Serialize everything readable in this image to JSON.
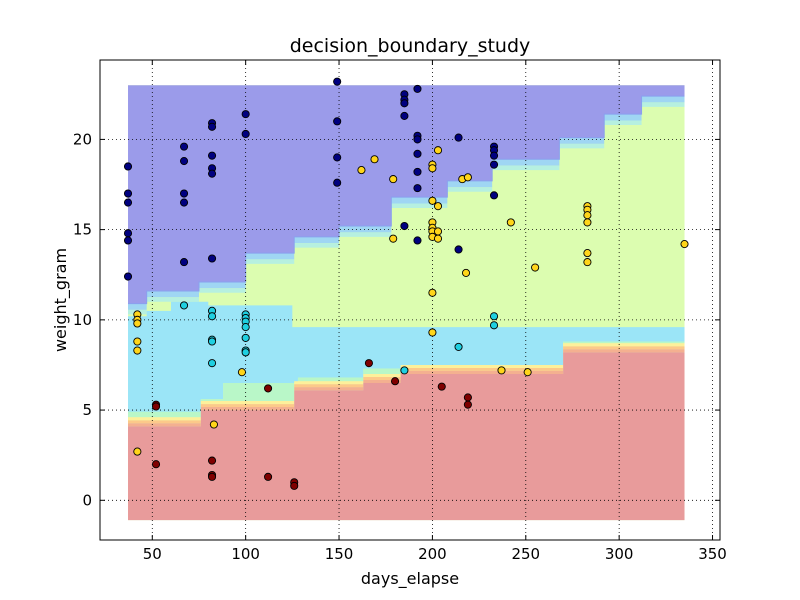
{
  "chart_data": {
    "type": "scatter",
    "title": "decision_boundary_study",
    "xlabel": "days_elapse",
    "ylabel": "weight_gram",
    "xlim": [
      22,
      354
    ],
    "ylim": [
      -2.2,
      24.4
    ],
    "xticks": [
      50,
      100,
      150,
      200,
      250,
      300,
      350
    ],
    "yticks": [
      0,
      5,
      10,
      15,
      20
    ],
    "grid": true,
    "colors": {
      "region_blue": "#9b9bea",
      "region_cyan": "#9be5f7",
      "region_green": "#dcfdb0",
      "region_red": "#e89b9b",
      "point_navy": "#00007f",
      "point_cyan": "#1fcfe0",
      "point_yellow": "#ffd51a",
      "point_darkred": "#7f0000"
    },
    "regions": {
      "x_range": [
        37,
        335
      ],
      "y_range": [
        -1.1,
        23
      ],
      "red_upper": [
        [
          37,
          4.1
        ],
        [
          76,
          4.1
        ],
        [
          76,
          5.0
        ],
        [
          126,
          5.0
        ],
        [
          126,
          6.1
        ],
        [
          163,
          6.1
        ],
        [
          163,
          6.5
        ],
        [
          183,
          6.5
        ],
        [
          183,
          7.0
        ],
        [
          270,
          7.0
        ],
        [
          270,
          8.2
        ],
        [
          335,
          8.2
        ]
      ],
      "cyan_upper": [
        [
          37,
          4.9
        ],
        [
          76,
          4.9
        ],
        [
          76,
          5.6
        ],
        [
          88,
          5.6
        ],
        [
          88,
          6.5
        ],
        [
          128,
          6.5
        ],
        [
          128,
          6.8
        ],
        [
          163,
          6.8
        ],
        [
          163,
          7.3
        ],
        [
          183,
          7.3
        ],
        [
          183,
          7.5
        ],
        [
          270,
          7.5
        ],
        [
          270,
          8.8
        ],
        [
          335,
          8.8
        ]
      ],
      "cyan_lower_outline": [
        [
          37,
          4.9
        ],
        [
          76,
          4.9
        ],
        [
          76,
          5.6
        ],
        [
          88,
          5.6
        ],
        [
          88,
          6.5
        ],
        [
          128,
          6.5
        ],
        [
          128,
          6.8
        ],
        [
          163,
          6.8
        ],
        [
          163,
          7.3
        ],
        [
          183,
          7.3
        ],
        [
          183,
          7.5
        ],
        [
          270,
          7.5
        ],
        [
          270,
          8.8
        ],
        [
          335,
          8.8
        ]
      ],
      "cyan_top": [
        [
          37,
          10.2
        ],
        [
          47,
          10.2
        ],
        [
          47,
          10.5
        ],
        [
          60,
          10.5
        ],
        [
          60,
          11.0
        ],
        [
          80,
          11.0
        ],
        [
          80,
          10.8
        ],
        [
          125,
          10.8
        ],
        [
          125,
          9.6
        ],
        [
          335,
          9.6
        ]
      ],
      "blue_lower": [
        [
          37,
          10.9
        ],
        [
          47,
          10.9
        ],
        [
          47,
          11.6
        ],
        [
          75,
          11.6
        ],
        [
          75,
          12.1
        ],
        [
          100,
          12.1
        ],
        [
          100,
          13.7
        ],
        [
          126,
          13.7
        ],
        [
          126,
          14.6
        ],
        [
          150,
          14.6
        ],
        [
          150,
          15.2
        ],
        [
          178,
          15.2
        ],
        [
          178,
          16.8
        ],
        [
          208,
          16.8
        ],
        [
          208,
          17.7
        ],
        [
          232,
          17.7
        ],
        [
          232,
          18.9
        ],
        [
          268,
          18.9
        ],
        [
          268,
          20.1
        ],
        [
          292,
          20.1
        ],
        [
          292,
          21.4
        ],
        [
          312,
          21.4
        ],
        [
          312,
          22.4
        ],
        [
          335,
          22.4
        ]
      ]
    },
    "series": [
      {
        "color": "#00007f",
        "points": [
          [
            37,
            18.5
          ],
          [
            37,
            17.0
          ],
          [
            37,
            16.5
          ],
          [
            37,
            14.8
          ],
          [
            37,
            14.4
          ],
          [
            37,
            12.4
          ],
          [
            67,
            19.6
          ],
          [
            67,
            18.8
          ],
          [
            67,
            17.0
          ],
          [
            67,
            16.5
          ],
          [
            67,
            13.2
          ],
          [
            82,
            20.9
          ],
          [
            82,
            20.7
          ],
          [
            82,
            19.1
          ],
          [
            82,
            18.4
          ],
          [
            82,
            18.1
          ],
          [
            82,
            13.4
          ],
          [
            100,
            21.4
          ],
          [
            100,
            20.3
          ],
          [
            149,
            23.2
          ],
          [
            149,
            21.0
          ],
          [
            149,
            19.0
          ],
          [
            149,
            17.6
          ],
          [
            185,
            22.5
          ],
          [
            185,
            22.2
          ],
          [
            185,
            22.0
          ],
          [
            185,
            21.3
          ],
          [
            185,
            15.2
          ],
          [
            192,
            22.8
          ],
          [
            192,
            20.2
          ],
          [
            192,
            20.0
          ],
          [
            192,
            19.2
          ],
          [
            192,
            18.2
          ],
          [
            192,
            17.3
          ],
          [
            192,
            14.4
          ],
          [
            214,
            20.1
          ],
          [
            214,
            13.9
          ],
          [
            233,
            19.6
          ],
          [
            233,
            19.4
          ],
          [
            233,
            19.1
          ],
          [
            233,
            18.6
          ],
          [
            233,
            16.9
          ]
        ]
      },
      {
        "color": "#1fcfe0",
        "points": [
          [
            67,
            10.8
          ],
          [
            82,
            10.5
          ],
          [
            82,
            10.2
          ],
          [
            82,
            8.9
          ],
          [
            82,
            8.8
          ],
          [
            82,
            7.6
          ],
          [
            100,
            10.3
          ],
          [
            100,
            10.1
          ],
          [
            100,
            9.9
          ],
          [
            100,
            9.6
          ],
          [
            100,
            9.0
          ],
          [
            100,
            8.3
          ],
          [
            100,
            8.2
          ],
          [
            185,
            7.2
          ],
          [
            214,
            8.5
          ],
          [
            233,
            10.2
          ],
          [
            233,
            9.7
          ]
        ]
      },
      {
        "color": "#ffd51a",
        "points": [
          [
            42,
            10.3
          ],
          [
            42,
            10.0
          ],
          [
            42,
            9.8
          ],
          [
            42,
            8.8
          ],
          [
            42,
            8.3
          ],
          [
            42,
            2.7
          ],
          [
            83,
            4.2
          ],
          [
            98,
            7.1
          ],
          [
            162,
            18.3
          ],
          [
            169,
            18.9
          ],
          [
            179,
            17.8
          ],
          [
            179,
            14.5
          ],
          [
            200,
            18.6
          ],
          [
            200,
            18.4
          ],
          [
            200,
            16.6
          ],
          [
            200,
            15.4
          ],
          [
            200,
            15.1
          ],
          [
            200,
            14.9
          ],
          [
            200,
            14.6
          ],
          [
            200,
            11.5
          ],
          [
            200,
            9.3
          ],
          [
            203,
            19.4
          ],
          [
            203,
            16.3
          ],
          [
            203,
            14.9
          ],
          [
            203,
            14.5
          ],
          [
            216,
            17.8
          ],
          [
            218,
            12.6
          ],
          [
            219,
            17.9
          ],
          [
            237,
            7.2
          ],
          [
            242,
            15.4
          ],
          [
            251,
            7.1
          ],
          [
            255,
            12.9
          ],
          [
            283,
            16.3
          ],
          [
            283,
            16.1
          ],
          [
            283,
            15.8
          ],
          [
            283,
            15.4
          ],
          [
            283,
            13.7
          ],
          [
            283,
            13.2
          ],
          [
            335,
            14.2
          ]
        ]
      },
      {
        "color": "#7f0000",
        "points": [
          [
            52,
            5.3
          ],
          [
            52,
            5.2
          ],
          [
            52,
            2.0
          ],
          [
            82,
            2.2
          ],
          [
            82,
            1.4
          ],
          [
            82,
            1.3
          ],
          [
            112,
            6.2
          ],
          [
            112,
            1.3
          ],
          [
            126,
            1.0
          ],
          [
            126,
            0.8
          ],
          [
            166,
            7.6
          ],
          [
            180,
            6.6
          ],
          [
            205,
            6.3
          ],
          [
            219,
            5.7
          ],
          [
            219,
            5.3
          ]
        ]
      }
    ]
  }
}
